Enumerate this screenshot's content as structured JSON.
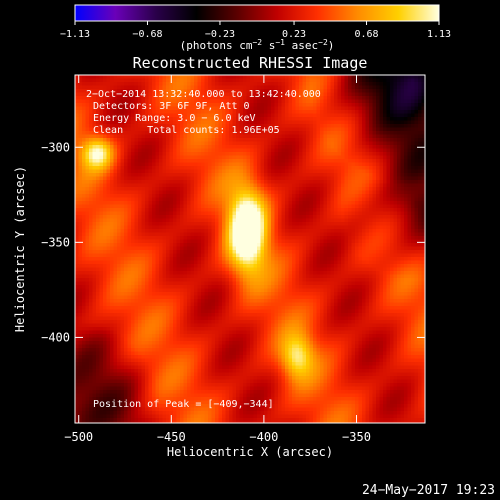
{
  "chart_data": {
    "type": "heatmap",
    "title": "Reconstructed RHESSI Image",
    "xlabel": "Heliocentric X (arcsec)",
    "ylabel": "Heliocentric Y (arcsec)",
    "xlim": [
      -502,
      -313
    ],
    "ylim": [
      -445,
      -262
    ],
    "x_ticks": [
      -500,
      -450,
      -400,
      -350
    ],
    "x_tick_labels": [
      "−500",
      "−450",
      "−400",
      "−350"
    ],
    "y_ticks": [
      -300,
      -350,
      -400
    ],
    "y_tick_labels": [
      "−300",
      "−350",
      "−400"
    ],
    "colorbar": {
      "range": [
        -1.13,
        1.13
      ],
      "ticks": [
        -1.13,
        -0.68,
        -0.23,
        0.23,
        0.68,
        1.13
      ],
      "tick_labels": [
        "−1.13",
        "−0.68",
        "−0.23",
        "0.23",
        "0.68",
        "1.13"
      ],
      "units_prefix": "(photons cm",
      "units_exp1": "−2",
      "units_mid": " s",
      "units_exp2": "−1",
      "units_mid2": " asec",
      "units_exp3": "−2",
      "units_suffix": ")",
      "colors": [
        "#0000ff",
        "#6a00b8",
        "#2a004a",
        "#000000",
        "#5a0000",
        "#c00000",
        "#ff3000",
        "#ff8c00",
        "#ffd000",
        "#ffffe0"
      ]
    },
    "annotations": {
      "time": "2−Oct−2014 13:32:40.000 to 13:42:40.000",
      "detectors": "Detectors: 3F 6F 9F, Att 0",
      "energy": "Energy Range: 3.0 − 6.0 keV",
      "clean": "Clean    Total counts: 1.96E+05",
      "peak": "Position of Peak = [−409,−344]"
    },
    "peak": {
      "x": -409,
      "y": -344,
      "value": 1.13
    },
    "sources": [
      {
        "x": -409,
        "y": -344,
        "amp": 1.13,
        "sx": 7,
        "sy": 15
      },
      {
        "x": -490,
        "y": -303,
        "amp": 0.75,
        "sx": 6,
        "sy": 6
      },
      {
        "x": -382,
        "y": -410,
        "amp": 0.62,
        "sx": 6,
        "sy": 8
      }
    ]
  },
  "footer": {
    "date": "24−May−2017 19:23"
  }
}
